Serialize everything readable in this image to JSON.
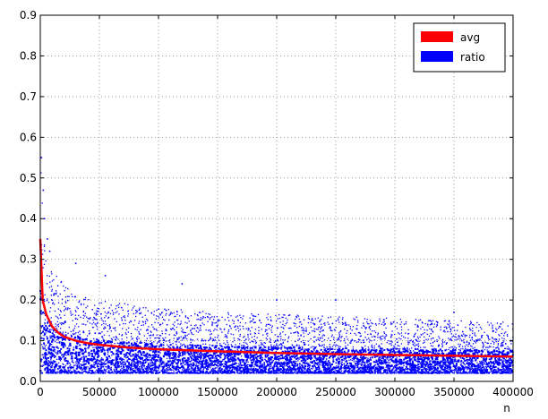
{
  "chart_data": {
    "type": "scatter",
    "title": "",
    "xlabel": "n",
    "ylabel": "",
    "xlim": [
      0,
      400000
    ],
    "ylim": [
      0.0,
      0.9
    ],
    "grid": true,
    "grid_style": "dotted",
    "legend_position": "top-right",
    "x_ticks": [
      0,
      50000,
      100000,
      150000,
      200000,
      250000,
      300000,
      350000,
      400000
    ],
    "x_tick_labels": [
      "0",
      "50000",
      "100000",
      "150000",
      "200000",
      "250000",
      "300000",
      "350000",
      "400000"
    ],
    "y_ticks": [
      0.0,
      0.1,
      0.2,
      0.3,
      0.4,
      0.5,
      0.6,
      0.7,
      0.8,
      0.9
    ],
    "y_tick_labels": [
      "0.0",
      "0.1",
      "0.2",
      "0.3",
      "0.4",
      "0.5",
      "0.6",
      "0.7",
      "0.8",
      "0.9"
    ],
    "series": [
      {
        "name": "avg",
        "kind": "line",
        "color": "#ff0000",
        "x": [
          0,
          2000,
          5000,
          10000,
          15000,
          20000,
          30000,
          40000,
          50000,
          75000,
          100000,
          150000,
          200000,
          250000,
          300000,
          350000,
          400000
        ],
        "y": [
          0.35,
          0.2,
          0.165,
          0.135,
          0.12,
          0.11,
          0.1,
          0.094,
          0.09,
          0.083,
          0.079,
          0.074,
          0.07,
          0.067,
          0.065,
          0.063,
          0.061
        ]
      },
      {
        "name": "ratio",
        "kind": "scatter",
        "color": "#0000ff",
        "x": [
          500,
          2000,
          5000,
          10000,
          20000,
          30000,
          50000,
          75000,
          100000,
          150000,
          200000,
          250000,
          300000,
          350000,
          400000
        ],
        "y_min": [
          0.02,
          0.02,
          0.02,
          0.02,
          0.02,
          0.02,
          0.02,
          0.02,
          0.02,
          0.02,
          0.02,
          0.02,
          0.02,
          0.02,
          0.02
        ],
        "y_max": [
          0.55,
          0.42,
          0.33,
          0.27,
          0.24,
          0.22,
          0.2,
          0.19,
          0.18,
          0.17,
          0.165,
          0.16,
          0.155,
          0.15,
          0.145
        ],
        "outliers": [
          [
            1000,
            0.55
          ],
          [
            2500,
            0.47
          ],
          [
            3500,
            0.4
          ],
          [
            6000,
            0.35
          ],
          [
            8000,
            0.32
          ],
          [
            30000,
            0.29
          ],
          [
            55000,
            0.26
          ],
          [
            120000,
            0.24
          ],
          [
            200000,
            0.2
          ],
          [
            250000,
            0.2
          ],
          [
            350000,
            0.17
          ]
        ]
      }
    ]
  }
}
